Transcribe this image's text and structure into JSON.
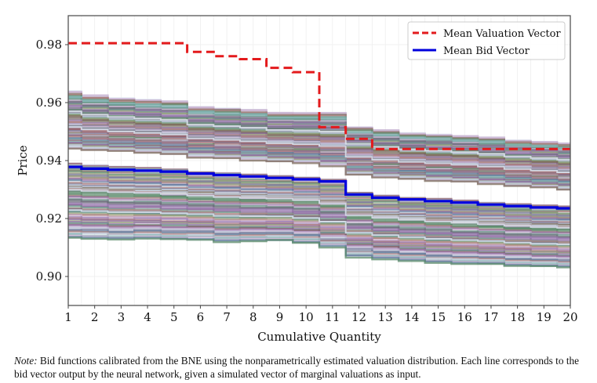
{
  "chart_data": {
    "type": "line",
    "title": "",
    "xlabel": "Cumulative Quantity",
    "ylabel": "Price",
    "xlim": [
      1,
      20
    ],
    "ylim": [
      0.89,
      0.99
    ],
    "xticks": [
      1,
      2,
      3,
      4,
      5,
      6,
      7,
      8,
      9,
      10,
      11,
      12,
      13,
      14,
      15,
      16,
      17,
      18,
      19,
      20
    ],
    "yticks": [
      0.9,
      0.92,
      0.94,
      0.96,
      0.98
    ],
    "ytick_labels": [
      "0.90",
      "0.92",
      "0.94",
      "0.96",
      "0.98"
    ],
    "grid": true,
    "legend_position": "top-right",
    "x": [
      1,
      2,
      3,
      4,
      5,
      6,
      7,
      8,
      9,
      10,
      11,
      12,
      13,
      14,
      15,
      16,
      17,
      18,
      19,
      20
    ],
    "series": [
      {
        "name": "Mean Valuation Vector",
        "style": "dashed-step",
        "color": "#e31a1c",
        "values": [
          0.9805,
          0.9805,
          0.9805,
          0.9805,
          0.9805,
          0.9775,
          0.976,
          0.975,
          0.972,
          0.9705,
          0.9515,
          0.9475,
          0.944,
          0.944,
          0.944,
          0.944,
          0.944,
          0.944,
          0.944,
          0.944
        ]
      },
      {
        "name": "Mean Bid Vector",
        "style": "solid-step",
        "color": "#0000dd",
        "values": [
          0.9378,
          0.9372,
          0.9368,
          0.9365,
          0.9362,
          0.9355,
          0.935,
          0.9345,
          0.934,
          0.9335,
          0.9328,
          0.9283,
          0.9272,
          0.9266,
          0.926,
          0.9255,
          0.9248,
          0.9243,
          0.9238,
          0.9235
        ]
      }
    ],
    "simulated_bid_bands": [
      {
        "name": "upper band",
        "top": [
          0.964,
          0.9625,
          0.9615,
          0.961,
          0.9605,
          0.9585,
          0.958,
          0.9575,
          0.9565,
          0.9565,
          0.9565,
          0.9515,
          0.9505,
          0.9495,
          0.949,
          0.9485,
          0.948,
          0.947,
          0.9465,
          0.946
        ],
        "bottom": [
          0.944,
          0.9435,
          0.943,
          0.9425,
          0.942,
          0.941,
          0.9405,
          0.94,
          0.9395,
          0.939,
          0.938,
          0.935,
          0.934,
          0.9335,
          0.933,
          0.9325,
          0.9318,
          0.931,
          0.9305,
          0.9298
        ]
      },
      {
        "name": "lower band",
        "top": [
          0.939,
          0.9385,
          0.938,
          0.9375,
          0.937,
          0.9362,
          0.9358,
          0.9352,
          0.9348,
          0.9343,
          0.9335,
          0.929,
          0.928,
          0.9273,
          0.9268,
          0.9262,
          0.9256,
          0.925,
          0.9245,
          0.9242
        ],
        "bottom": [
          0.913,
          0.9128,
          0.9125,
          0.9128,
          0.9125,
          0.9125,
          0.9118,
          0.912,
          0.9122,
          0.9115,
          0.91,
          0.9065,
          0.9058,
          0.9052,
          0.9045,
          0.9042,
          0.904,
          0.9035,
          0.9032,
          0.903
        ]
      }
    ],
    "simulated_line_count_per_band": 60,
    "simulated_palette": [
      "#6b6b7a",
      "#5a8a6a",
      "#8a5a6a",
      "#7a7a9a",
      "#9aa07a",
      "#5a7a9a",
      "#8a6a9a",
      "#6a9a8a",
      "#a07a7a",
      "#7a6a5a",
      "#bcc8d8",
      "#9a7ab0",
      "#5f8f7f",
      "#b08080",
      "#c8b0d0",
      "#80b0b0"
    ]
  },
  "legend": {
    "items": [
      {
        "label": "Mean Valuation Vector",
        "color": "#e31a1c",
        "style": "dashed"
      },
      {
        "label": "Mean Bid Vector",
        "color": "#0000dd",
        "style": "solid"
      }
    ]
  },
  "note": {
    "prefix": "Note:",
    "text": " Bid functions calibrated from the BNE using the nonparametrically estimated valuation distribution.  Each line corresponds to the bid vector output by the neural network, given a simulated vector of marginal valuations as input."
  }
}
